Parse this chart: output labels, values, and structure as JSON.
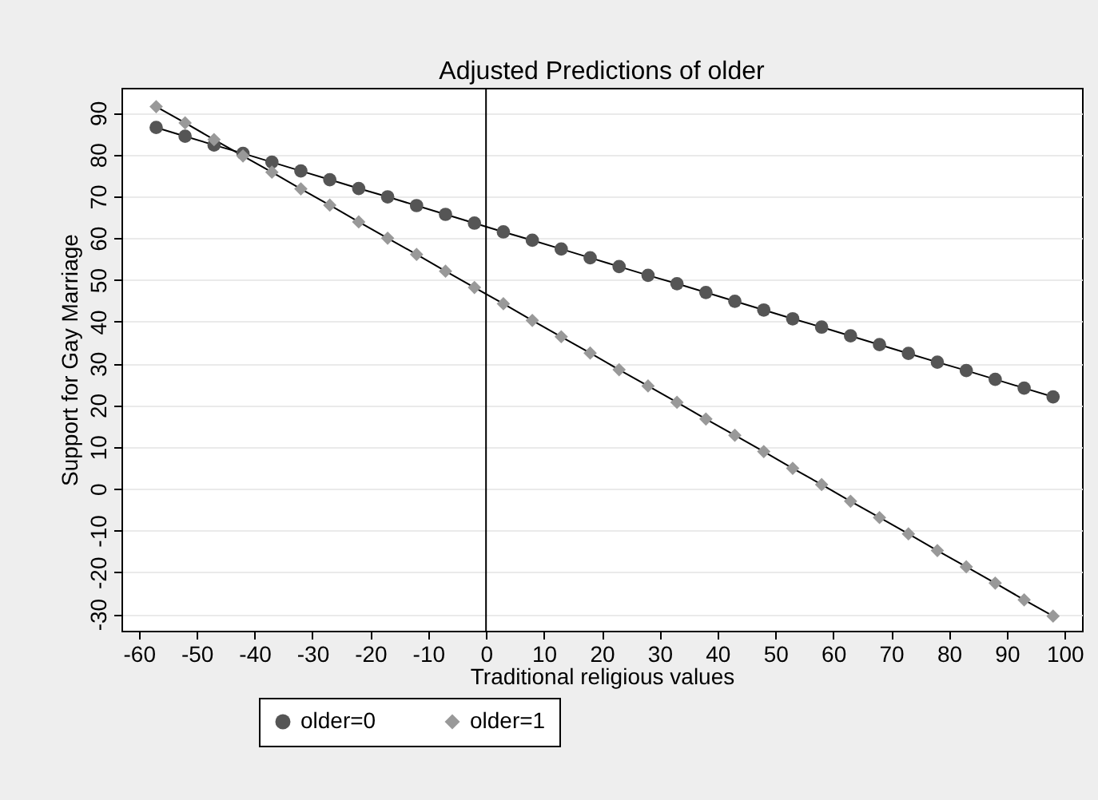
{
  "chart_data": {
    "type": "line",
    "title": "Adjusted Predictions of older",
    "xlabel": "Traditional religious values",
    "ylabel": "Support for Gay Marriage",
    "x": [
      -57,
      -52,
      -47,
      -42,
      -37,
      -32,
      -27,
      -22,
      -17,
      -12,
      -7,
      -2,
      3,
      8,
      13,
      18,
      23,
      28,
      33,
      38,
      43,
      48,
      53,
      58,
      63,
      68,
      73,
      78,
      83,
      88,
      93,
      98
    ],
    "series": [
      {
        "name": "older=0",
        "color": "#555555",
        "marker": "circle",
        "values": [
          86.5,
          84.4,
          82.3,
          80.3,
          78.2,
          76.1,
          74.0,
          71.9,
          69.9,
          67.8,
          65.7,
          63.6,
          61.5,
          59.5,
          57.4,
          55.3,
          53.2,
          51.1,
          49.1,
          47.0,
          44.9,
          42.8,
          40.7,
          38.7,
          36.6,
          34.5,
          32.4,
          30.3,
          28.3,
          26.2,
          24.1,
          22.0
        ]
      },
      {
        "name": "older=1",
        "color": "#999999",
        "marker": "diamond",
        "values": [
          91.5,
          87.6,
          83.6,
          79.7,
          75.8,
          71.8,
          67.9,
          63.9,
          60.0,
          56.1,
          52.1,
          48.2,
          44.3,
          40.3,
          36.4,
          32.5,
          28.5,
          24.6,
          20.7,
          16.7,
          12.8,
          8.9,
          4.9,
          1.0,
          -3.0,
          -6.9,
          -10.8,
          -14.8,
          -18.7,
          -22.6,
          -26.6,
          -30.5
        ]
      }
    ],
    "xlim": [
      -63,
      103
    ],
    "xticks": [
      -60,
      -50,
      -40,
      -30,
      -20,
      -10,
      0,
      10,
      20,
      30,
      40,
      50,
      60,
      70,
      80,
      90,
      100
    ],
    "ylim": [
      -34,
      96
    ],
    "yticks": [
      -30,
      -20,
      -10,
      0,
      10,
      20,
      30,
      40,
      50,
      60,
      70,
      80,
      90
    ],
    "ref_lines": [
      {
        "axis": "x",
        "value": 0,
        "color": "#000000"
      }
    ],
    "grid": "y",
    "legend": "bottom",
    "line_style": "solid"
  }
}
